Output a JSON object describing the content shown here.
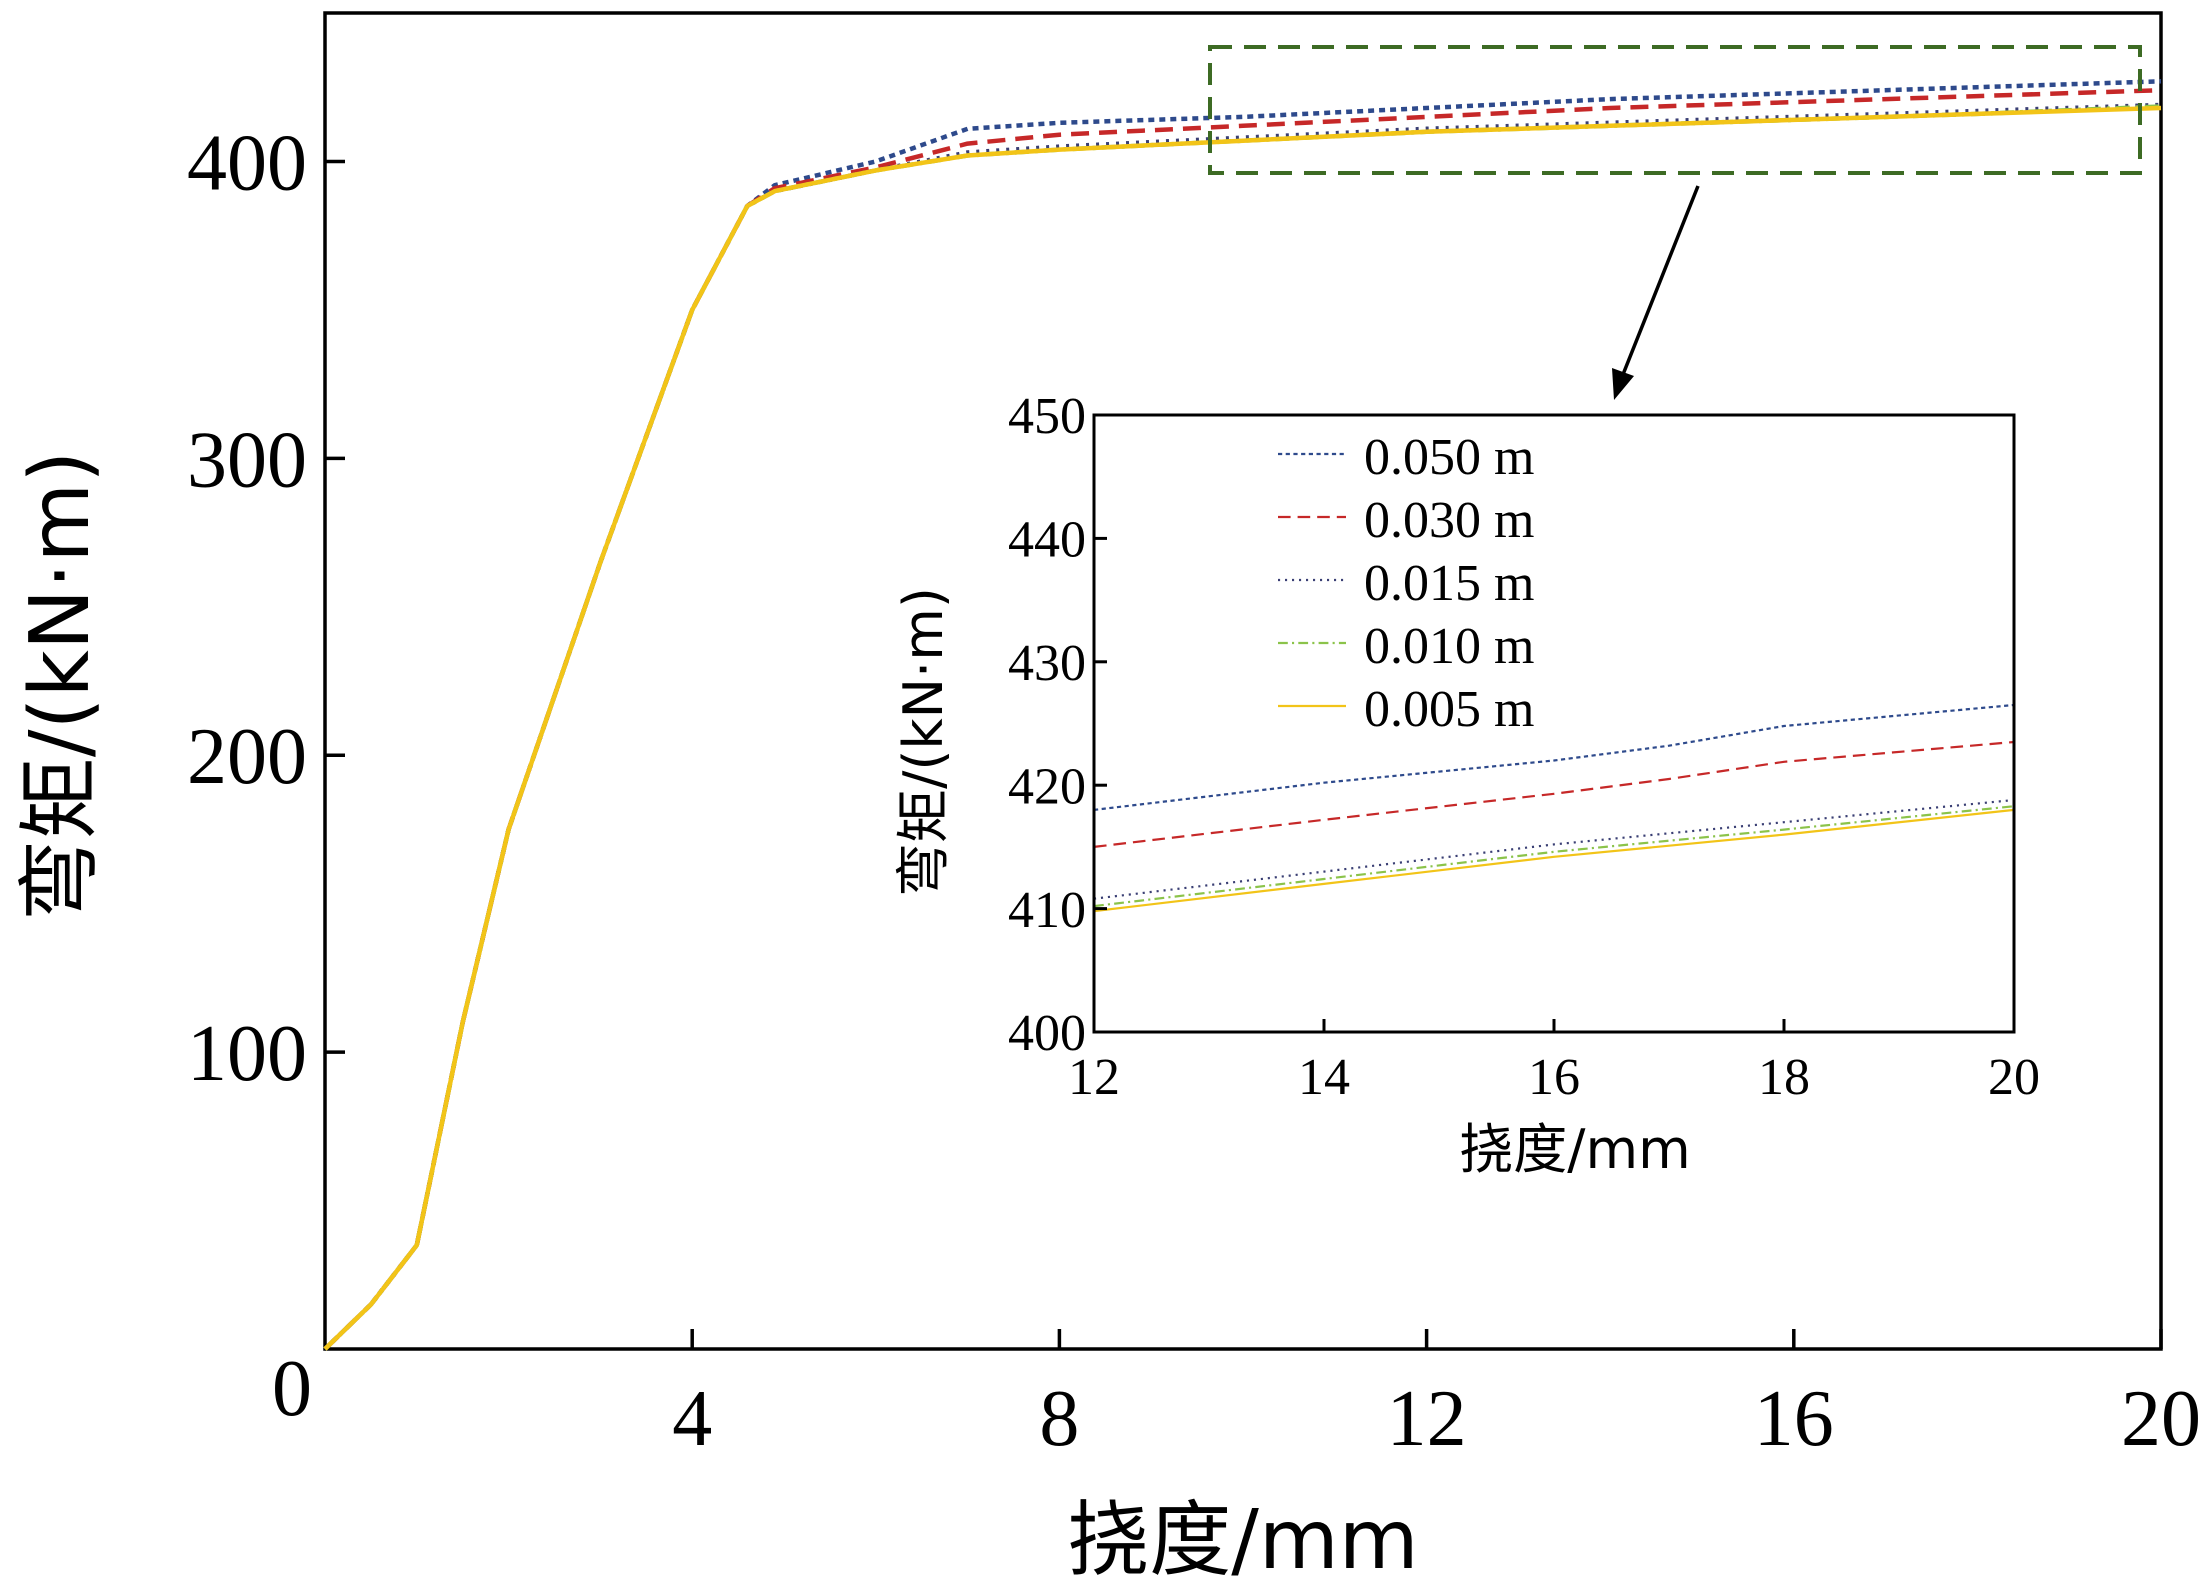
{
  "chart_data": [
    {
      "type": "line",
      "name": "main",
      "xlabel": "挠度/mm",
      "ylabel": "弯矩/(kN·m)",
      "xlim": [
        0,
        20
      ],
      "ylim": [
        0,
        450
      ],
      "xticks": [
        4,
        8,
        12,
        16,
        20
      ],
      "yticks": [
        100,
        200,
        300,
        400
      ],
      "origin_label": "0",
      "grid": false,
      "series": [
        {
          "name": "0.050 m",
          "color": "#2e4a8c",
          "dash": "dense-dot",
          "x": [
            0,
            0.5,
            1.0,
            1.5,
            2.0,
            3.0,
            4.0,
            4.6,
            4.9,
            6.0,
            7.0,
            8.0,
            10,
            12,
            14,
            16,
            18,
            20
          ],
          "y": [
            0,
            15,
            35,
            110,
            175,
            265,
            350,
            385,
            392,
            400,
            411,
            413,
            415,
            418,
            421,
            423,
            425,
            427
          ]
        },
        {
          "name": "0.030 m",
          "color": "#c62828",
          "dash": "dash",
          "x": [
            0,
            0.5,
            1.0,
            1.5,
            2.0,
            3.0,
            4.0,
            4.6,
            4.9,
            6.0,
            7.0,
            8.0,
            10,
            12,
            14,
            16,
            18,
            20
          ],
          "y": [
            0,
            15,
            35,
            110,
            175,
            265,
            350,
            385,
            391,
            398,
            406,
            409,
            412,
            415,
            418,
            420,
            422,
            424
          ]
        },
        {
          "name": "0.015 m",
          "color": "#3a3f74",
          "dash": "dot",
          "x": [
            0,
            0.5,
            1.0,
            1.5,
            2.0,
            3.0,
            4.0,
            4.6,
            4.9,
            6.0,
            7.0,
            8.0,
            10,
            12,
            14,
            16,
            18,
            20
          ],
          "y": [
            0,
            15,
            35,
            110,
            175,
            265,
            350,
            385,
            390,
            397,
            403,
            405,
            408,
            411,
            413,
            415,
            417,
            419
          ]
        },
        {
          "name": "0.010 m",
          "color": "#8bc34a",
          "dash": "dashdot",
          "x": [
            0,
            0.5,
            1.0,
            1.5,
            2.0,
            3.0,
            4.0,
            4.6,
            4.9,
            6.0,
            7.0,
            8.0,
            10,
            12,
            14,
            16,
            18,
            20
          ],
          "y": [
            0,
            15,
            35,
            110,
            175,
            265,
            350,
            385,
            390,
            397,
            402,
            404,
            407,
            410,
            412,
            414,
            416,
            418.5
          ]
        },
        {
          "name": "0.005 m",
          "color": "#f2c418",
          "dash": "solid",
          "x": [
            0,
            0.5,
            1.0,
            1.5,
            2.0,
            3.0,
            4.0,
            4.6,
            4.9,
            6.0,
            7.0,
            8.0,
            10,
            12,
            14,
            16,
            18,
            20
          ],
          "y": [
            0,
            15,
            35,
            110,
            175,
            265,
            350,
            385,
            390,
            397,
            402,
            404,
            407,
            410,
            412,
            414,
            416,
            418
          ]
        }
      ]
    },
    {
      "type": "line",
      "name": "inset",
      "xlabel": "挠度/mm",
      "ylabel": "弯矩/(kN·m)",
      "xlim": [
        12,
        20
      ],
      "ylim": [
        400,
        450
      ],
      "xticks": [
        12,
        14,
        16,
        18,
        20
      ],
      "yticks": [
        400,
        410,
        420,
        430,
        440,
        450
      ],
      "legend_position": "top-left",
      "grid": false,
      "series": [
        {
          "name": "0.050 m",
          "color": "#2e4a8c",
          "dash": "dense-dot",
          "x": [
            12,
            14,
            16,
            17,
            18,
            20
          ],
          "y": [
            418,
            420.2,
            422,
            423.2,
            424.8,
            426.5
          ]
        },
        {
          "name": "0.030 m",
          "color": "#c62828",
          "dash": "dash",
          "x": [
            12,
            14,
            16,
            17,
            18,
            20
          ],
          "y": [
            415,
            417.2,
            419.3,
            420.5,
            421.9,
            423.5
          ]
        },
        {
          "name": "0.015 m",
          "color": "#3a3f74",
          "dash": "dot",
          "x": [
            12,
            14,
            16,
            18,
            20
          ],
          "y": [
            410.8,
            413,
            415.2,
            417,
            418.8
          ]
        },
        {
          "name": "0.010 m",
          "color": "#8bc34a",
          "dash": "dashdot",
          "x": [
            12,
            14,
            16,
            18,
            20
          ],
          "y": [
            410.2,
            412.4,
            414.6,
            416.4,
            418.3
          ]
        },
        {
          "name": "0.005 m",
          "color": "#f2c418",
          "dash": "solid",
          "x": [
            12,
            14,
            16,
            18,
            20
          ],
          "y": [
            409.8,
            412,
            414.2,
            416,
            418
          ]
        }
      ]
    }
  ],
  "colors": {
    "zoom_box": "#3d6b24",
    "axes": "#000000"
  }
}
